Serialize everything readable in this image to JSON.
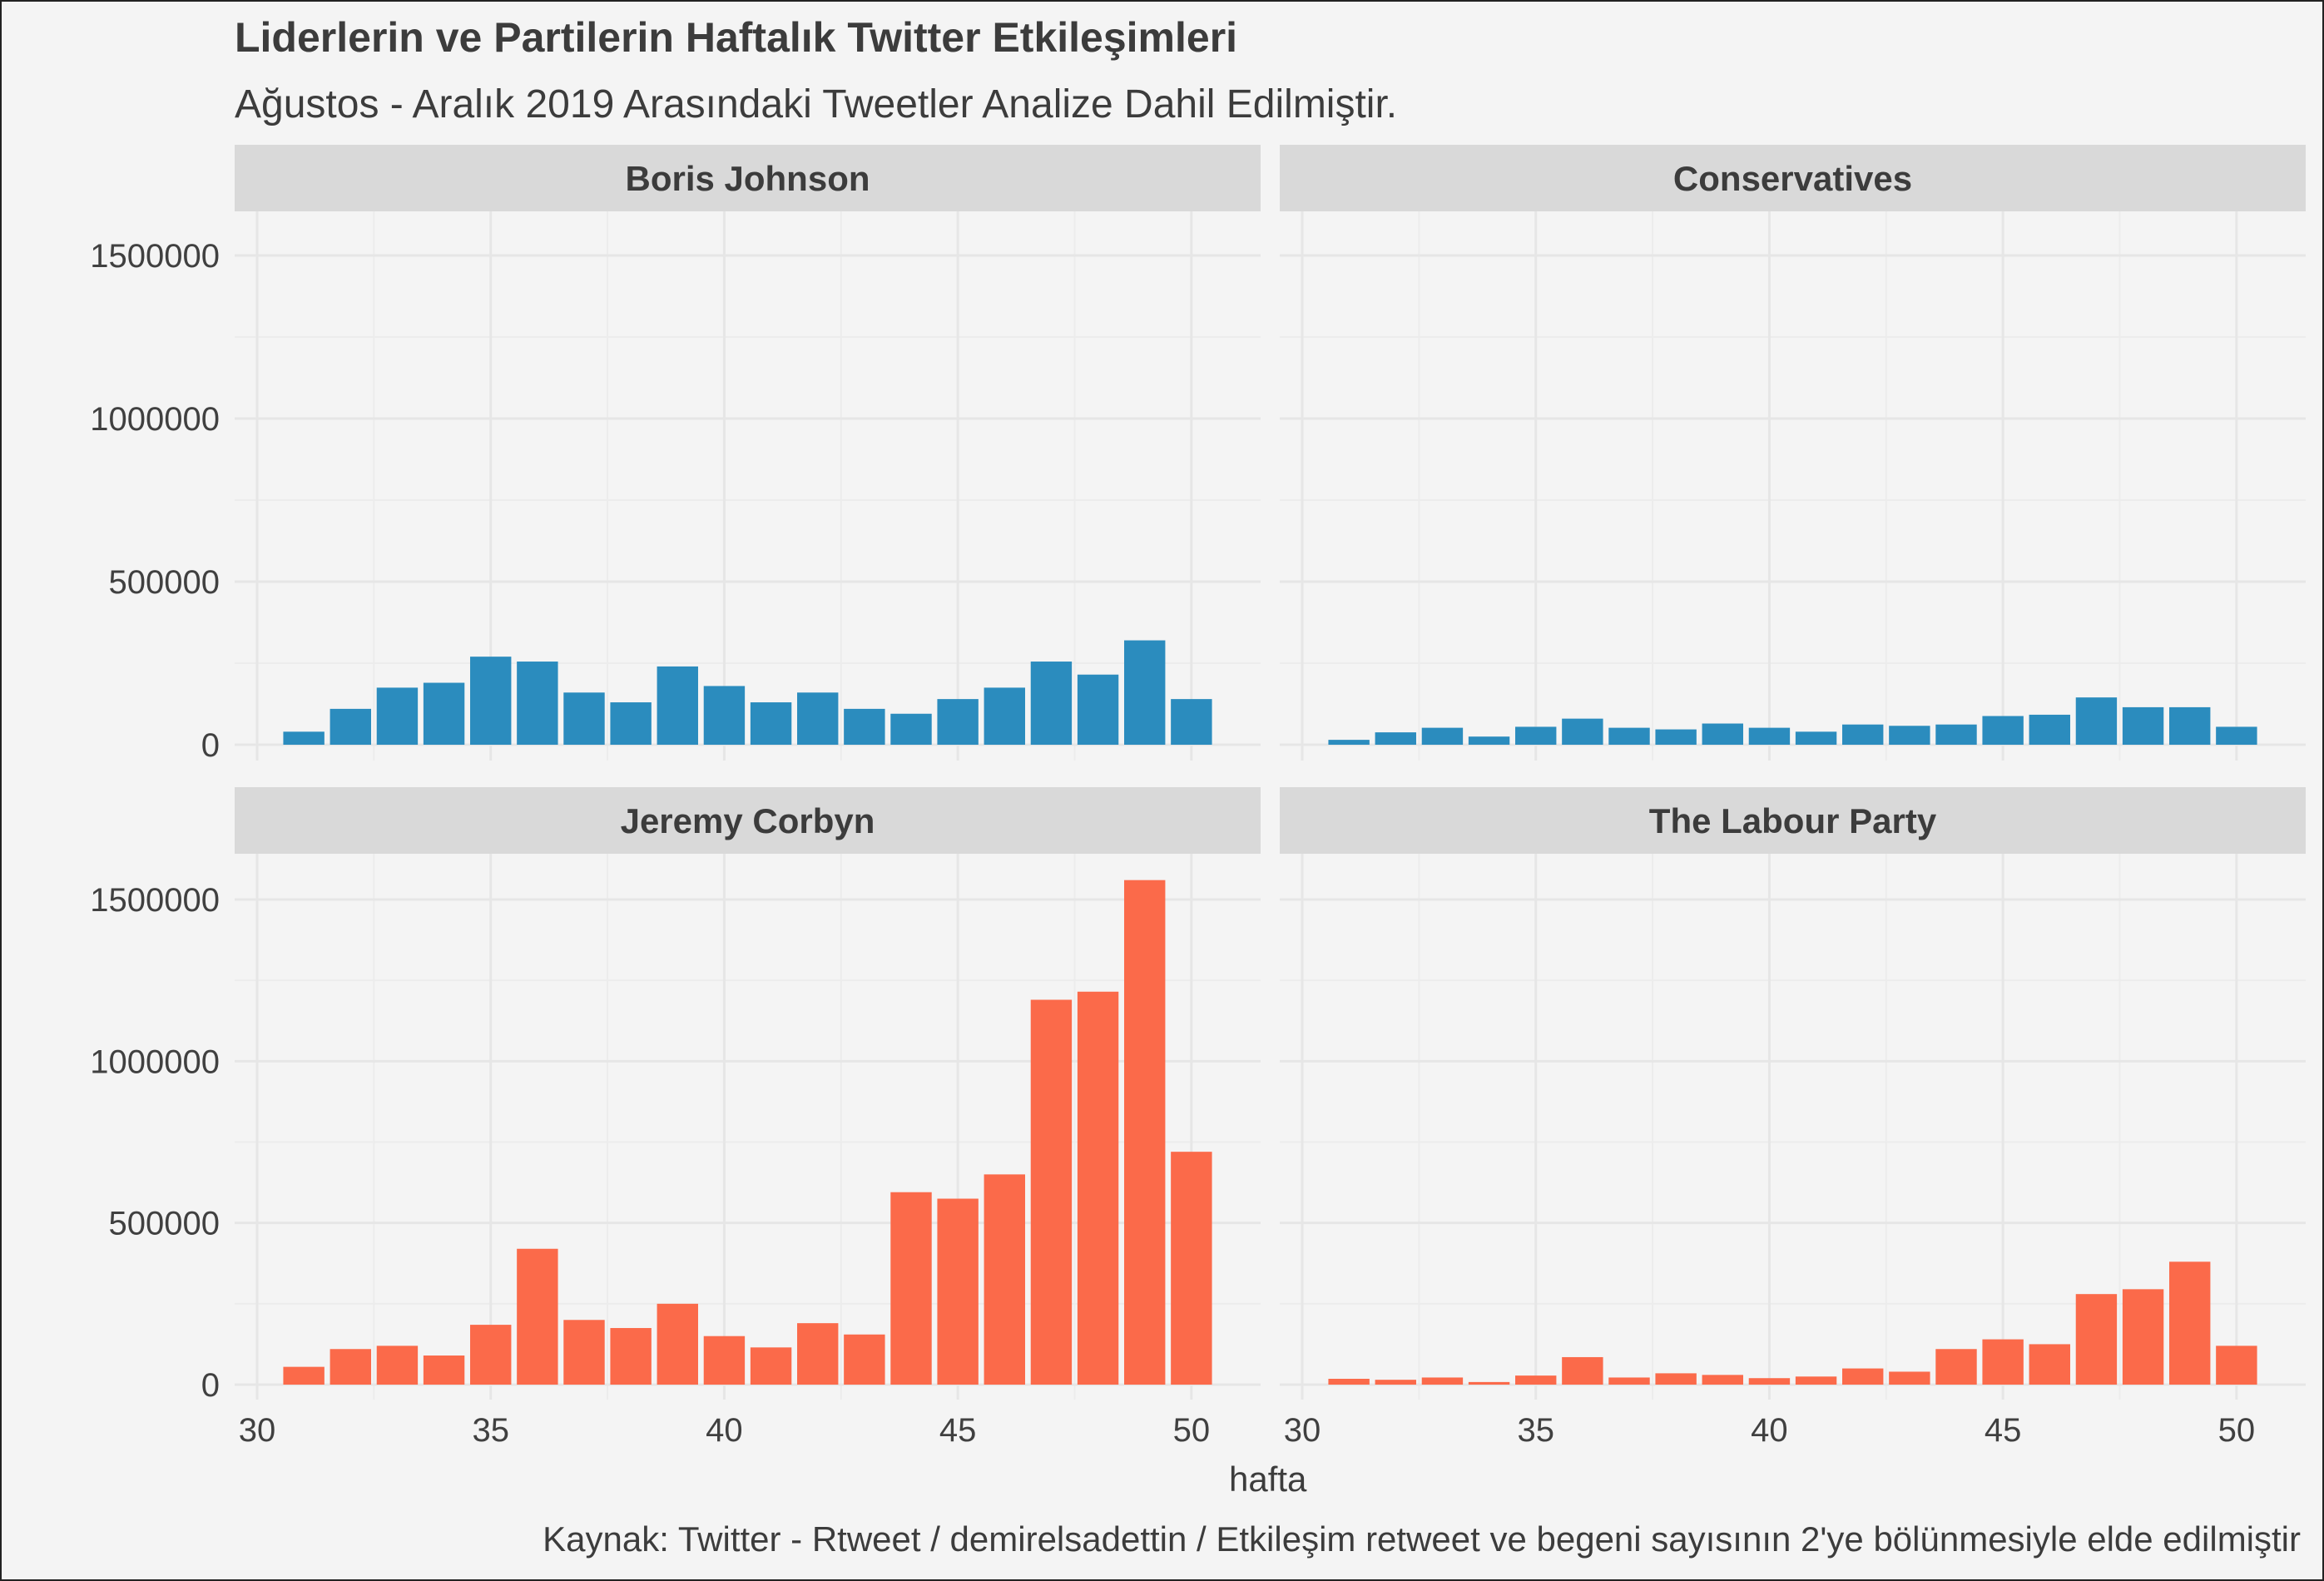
{
  "title": "Liderlerin ve Partilerin Haftalık Twitter Etkileşimleri",
  "subtitle": "Ağustos - Aralık 2019 Arasındaki Tweetler Analize Dahil Edilmiştir.",
  "caption": "Kaynak: Twitter - Rtweet / demirelsadettin / Etkileşim retweet ve begeni sayısının 2'ye bölünmesiyle elde edilmiştir",
  "colors": {
    "blue": "#2b8cbe",
    "orange": "#fb6a4a",
    "strip": "#d9d9d9",
    "grid": "#e6e6e6"
  },
  "chart_data": {
    "type": "bar",
    "xlabel": "hafta",
    "ylabel": "",
    "xlim": [
      30,
      51
    ],
    "ylim": [
      0,
      1560000
    ],
    "x_ticks": [
      30,
      35,
      40,
      45,
      50
    ],
    "y_ticks": [
      0,
      500000,
      1000000,
      1500000
    ],
    "x": [
      31,
      32,
      33,
      34,
      35,
      36,
      37,
      38,
      39,
      40,
      41,
      42,
      43,
      44,
      45,
      46,
      47,
      48,
      49,
      50
    ],
    "panels": [
      {
        "name": "Boris Johnson",
        "color": "#2b8cbe",
        "values": [
          40000,
          110000,
          175000,
          190000,
          270000,
          255000,
          160000,
          130000,
          240000,
          180000,
          130000,
          160000,
          110000,
          95000,
          140000,
          175000,
          255000,
          215000,
          320000,
          140000
        ]
      },
      {
        "name": "Conservatives",
        "color": "#2b8cbe",
        "values": [
          15000,
          38000,
          52000,
          25000,
          55000,
          80000,
          52000,
          47000,
          65000,
          52000,
          40000,
          62000,
          58000,
          62000,
          88000,
          92000,
          145000,
          115000,
          115000,
          55000
        ]
      },
      {
        "name": "Jeremy Corbyn",
        "color": "#fb6a4a",
        "values": [
          55000,
          110000,
          120000,
          90000,
          185000,
          420000,
          200000,
          175000,
          250000,
          150000,
          115000,
          190000,
          155000,
          595000,
          575000,
          650000,
          1190000,
          1215000,
          1560000,
          720000
        ]
      },
      {
        "name": "The Labour Party",
        "color": "#fb6a4a",
        "values": [
          18000,
          15000,
          22000,
          8000,
          28000,
          85000,
          22000,
          35000,
          30000,
          20000,
          25000,
          50000,
          40000,
          110000,
          140000,
          125000,
          280000,
          295000,
          380000,
          120000
        ]
      }
    ]
  }
}
